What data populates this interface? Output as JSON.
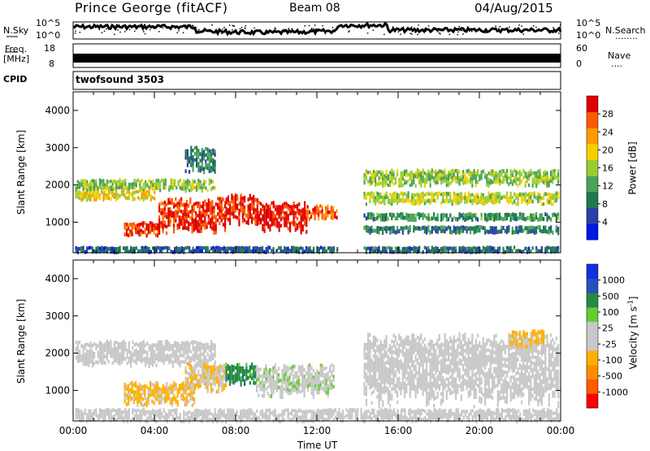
{
  "header": {
    "station": "Prince George (fitACF)",
    "beam": "Beam 08",
    "date": "04/Aug/2015"
  },
  "top_panels": {
    "nsky_label": "N.Sky",
    "nsearch_label": "N.Search",
    "nsearch_dots": "........",
    "noise_ticks": [
      "10^5",
      "10^0"
    ],
    "freq_label": "Freq.",
    "freq_unit": "[MHz]",
    "freq_ticks": [
      "18",
      "8"
    ],
    "nave_label": "Nave",
    "nave_dots": "....",
    "nave_ticks": [
      "60",
      "0"
    ],
    "cpid_label": "CPID",
    "cpid_value": "twofsound 3503"
  },
  "chart_data": [
    {
      "type": "heatmap",
      "panel": "power",
      "ylabel": "Slant Range [km]",
      "ylim": [
        180,
        4500
      ],
      "yticks": [
        1000,
        2000,
        3000,
        4000
      ],
      "xlim": [
        0,
        24
      ],
      "xticks": [
        "00:00",
        "04:00",
        "08:00",
        "12:00",
        "16:00",
        "20:00",
        "00:00"
      ],
      "colorbar_label": "Power [dB]",
      "colorbar_ticks": [
        "28",
        "24",
        "20",
        "16",
        "12",
        "8",
        "4"
      ],
      "colorbar_colors": [
        "#0018e8",
        "#2a3fa8",
        "#1e7a4a",
        "#4aa35a",
        "#9acd32",
        "#f5d000",
        "#ff9a00",
        "#ff5a00",
        "#e00000"
      ],
      "clim": [
        0,
        30
      ],
      "bands": [
        {
          "t0": 0.1,
          "t1": 7.0,
          "r0": 1850,
          "r1": 2150,
          "value": 14
        },
        {
          "t0": 0.1,
          "t1": 4.0,
          "r0": 1600,
          "r1": 1850,
          "value": 18
        },
        {
          "t0": 2.5,
          "t1": 4.2,
          "r0": 650,
          "r1": 1000,
          "value": 26
        },
        {
          "t0": 4.2,
          "t1": 7.5,
          "r0": 800,
          "r1": 1600,
          "value": 27
        },
        {
          "t0": 7.5,
          "t1": 9.2,
          "r0": 1000,
          "r1": 1700,
          "value": 28
        },
        {
          "t0": 9.2,
          "t1": 11.5,
          "r0": 800,
          "r1": 1500,
          "value": 29
        },
        {
          "t0": 11.5,
          "t1": 13.0,
          "r0": 1100,
          "r1": 1450,
          "value": 25
        },
        {
          "t0": 14.3,
          "t1": 23.9,
          "r0": 2000,
          "r1": 2400,
          "value": 14
        },
        {
          "t0": 14.3,
          "t1": 23.9,
          "r0": 1500,
          "r1": 1800,
          "value": 16
        },
        {
          "t0": 14.3,
          "t1": 23.9,
          "r0": 1050,
          "r1": 1250,
          "value": 10
        },
        {
          "t0": 14.3,
          "t1": 23.9,
          "r0": 700,
          "r1": 900,
          "value": 8
        },
        {
          "t0": 5.5,
          "t1": 7.0,
          "r0": 2400,
          "r1": 3000,
          "value": 9
        },
        {
          "t0": 0.1,
          "t1": 13.0,
          "r0": 180,
          "r1": 350,
          "value": 6
        },
        {
          "t0": 14.3,
          "t1": 23.9,
          "r0": 180,
          "r1": 350,
          "value": 7
        }
      ]
    },
    {
      "type": "heatmap",
      "panel": "velocity",
      "ylabel": "Slant Range [km]",
      "ylim": [
        180,
        4500
      ],
      "yticks": [
        1000,
        2000,
        3000,
        4000
      ],
      "xlim": [
        0,
        24
      ],
      "xticks": [
        "00:00",
        "04:00",
        "08:00",
        "12:00",
        "16:00",
        "20:00",
        "00:00"
      ],
      "xlabel": "Time UT",
      "colorbar_label": "Velocity [m s^-1]",
      "colorbar_ticks": [
        "1000",
        "500",
        "100",
        "25",
        "-25",
        "-100",
        "-500",
        "-1000"
      ],
      "colorbar_colors": [
        "#ff0000",
        "#ff5a00",
        "#ff8c00",
        "#ffb000",
        "#c8c8c8",
        "#c8c8c8",
        "#66cc33",
        "#228b44",
        "#2a4fbf",
        "#1030e0"
      ],
      "clim": [
        -1200,
        1200
      ],
      "bands": [
        {
          "t0": 0.1,
          "t1": 7.0,
          "r0": 1700,
          "r1": 2300,
          "value": 0
        },
        {
          "t0": 2.5,
          "t1": 6.0,
          "r0": 650,
          "r1": 1200,
          "value": -300
        },
        {
          "t0": 5.5,
          "t1": 7.5,
          "r0": 1000,
          "r1": 1700,
          "value": -200
        },
        {
          "t0": 7.5,
          "t1": 9.0,
          "r0": 1200,
          "r1": 1700,
          "value": 600
        },
        {
          "t0": 9.0,
          "t1": 12.8,
          "r0": 900,
          "r1": 1650,
          "value": 150
        },
        {
          "t0": 14.3,
          "t1": 23.9,
          "r0": 800,
          "r1": 2400,
          "value": 0
        },
        {
          "t0": 21.5,
          "t1": 23.2,
          "r0": 2200,
          "r1": 2600,
          "value": -300
        },
        {
          "t0": 0.1,
          "t1": 23.9,
          "r0": 180,
          "r1": 500,
          "value": 60
        }
      ]
    }
  ]
}
